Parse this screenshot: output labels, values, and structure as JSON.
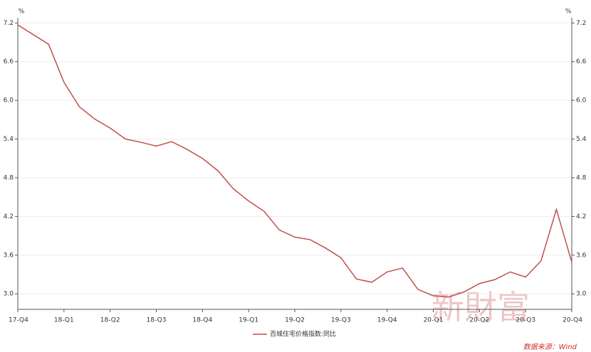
{
  "chart_data": {
    "type": "line",
    "y_unit": "%",
    "y2_unit": "%",
    "x": [
      0,
      2,
      3,
      4,
      5,
      6,
      7,
      8,
      9,
      10,
      11,
      12,
      13,
      14,
      15,
      16,
      17,
      18,
      19,
      20,
      21,
      22,
      23,
      24,
      25,
      26,
      27,
      28,
      29,
      30,
      31,
      32,
      33,
      34,
      35,
      36
    ],
    "xlim": [
      0,
      36
    ],
    "xticks": [
      {
        "value": 0,
        "label": "17-Q4"
      },
      {
        "value": 3,
        "label": "18-Q1"
      },
      {
        "value": 6,
        "label": "18-Q2"
      },
      {
        "value": 9,
        "label": "18-Q3"
      },
      {
        "value": 12,
        "label": "18-Q4"
      },
      {
        "value": 15,
        "label": "19-Q1"
      },
      {
        "value": 18,
        "label": "19-Q2"
      },
      {
        "value": 21,
        "label": "19-Q3"
      },
      {
        "value": 24,
        "label": "19-Q4"
      },
      {
        "value": 27,
        "label": "20-Q1"
      },
      {
        "value": 30,
        "label": "20-Q2"
      },
      {
        "value": 33,
        "label": "20-Q3"
      },
      {
        "value": 36,
        "label": "20-Q4"
      }
    ],
    "ylim": [
      2.76,
      7.28
    ],
    "yticks": [
      {
        "value": 3,
        "label": "3.0"
      },
      3.6,
      4.2,
      4.8,
      5.4,
      {
        "value": 6,
        "label": "6.0"
      },
      6.6,
      7.2
    ],
    "y2lim": [
      2.76,
      7.28
    ],
    "y2ticks": [
      {
        "value": 3,
        "label": "3.0"
      },
      3.6,
      4.2,
      4.8,
      5.4,
      {
        "value": 6,
        "label": "6.0"
      },
      6.6,
      7.2
    ],
    "grid": true,
    "legend": "bottom",
    "series": [
      {
        "name": "百城住宅价格指数:同比",
        "color": "#c0504d",
        "values": [
          7.17,
          6.87,
          6.28,
          5.9,
          5.71,
          5.57,
          5.4,
          5.35,
          5.29,
          5.36,
          5.24,
          5.1,
          4.91,
          4.63,
          4.44,
          4.28,
          3.99,
          3.88,
          3.84,
          3.71,
          3.56,
          3.23,
          3.18,
          3.34,
          3.4,
          3.07,
          2.97,
          2.95,
          3.03,
          3.16,
          3.22,
          3.34,
          3.26,
          3.51,
          4.31,
          3.49
        ]
      }
    ],
    "watermark": "新財富",
    "source": "数据来源：Wind"
  }
}
